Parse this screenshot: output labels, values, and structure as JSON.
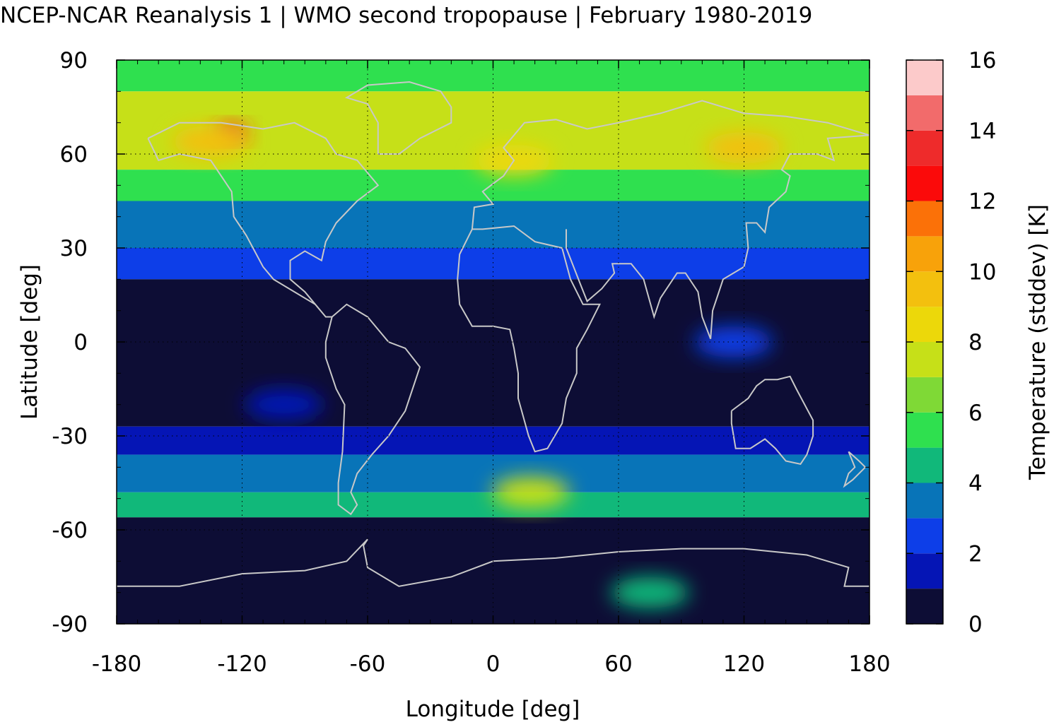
{
  "chart_data": {
    "type": "heatmap",
    "title": "NCEP-NCAR Reanalysis 1 | WMO second tropopause | February 1980-2019",
    "xlabel": "Longitude [deg]",
    "ylabel": "Latitude [deg]",
    "colorbar_label": "Temperature (stddev) [K]",
    "xlim": [
      -180,
      180
    ],
    "ylim": [
      -90,
      90
    ],
    "x_ticks": [
      -180,
      -120,
      -60,
      0,
      60,
      120,
      180
    ],
    "y_ticks": [
      -90,
      -60,
      -30,
      0,
      30,
      60,
      90
    ],
    "colorbar_ticks": [
      0,
      2,
      4,
      6,
      8,
      10,
      12,
      14,
      16
    ],
    "colorbar_range": [
      0,
      16
    ],
    "colorbar_levels": [
      {
        "from": 0,
        "to": 1,
        "color": "#0d0d35"
      },
      {
        "from": 1,
        "to": 2,
        "color": "#0515b5"
      },
      {
        "from": 2,
        "to": 3,
        "color": "#0d3ee8"
      },
      {
        "from": 3,
        "to": 4,
        "color": "#0874b8"
      },
      {
        "from": 4,
        "to": 5,
        "color": "#11b87a"
      },
      {
        "from": 5,
        "to": 6,
        "color": "#2fe04f"
      },
      {
        "from": 6,
        "to": 7,
        "color": "#7fd936"
      },
      {
        "from": 7,
        "to": 8,
        "color": "#c6e018"
      },
      {
        "from": 8,
        "to": 9,
        "color": "#ecd80a"
      },
      {
        "from": 9,
        "to": 10,
        "color": "#f3c00e"
      },
      {
        "from": 10,
        "to": 11,
        "color": "#f8a20a"
      },
      {
        "from": 11,
        "to": 12,
        "color": "#fb7108"
      },
      {
        "from": 12,
        "to": 13,
        "color": "#fb0a0a"
      },
      {
        "from": 13,
        "to": 14,
        "color": "#ee2b2b"
      },
      {
        "from": 14,
        "to": 15,
        "color": "#f26b6b"
      },
      {
        "from": 15,
        "to": 16,
        "color": "#fccaca"
      }
    ],
    "grid": true,
    "coastlines": true,
    "field_bands_deg_lat": [
      {
        "lat_from": 80,
        "lat_to": 90,
        "stddev": 5.5
      },
      {
        "lat_from": 55,
        "lat_to": 80,
        "stddev": 7.5
      },
      {
        "lat_from": 45,
        "lat_to": 55,
        "stddev": 5.5
      },
      {
        "lat_from": 30,
        "lat_to": 45,
        "stddev": 3.5
      },
      {
        "lat_from": 20,
        "lat_to": 30,
        "stddev": 2.5
      },
      {
        "lat_from": -27,
        "lat_to": 20,
        "stddev": 0.5
      },
      {
        "lat_from": -36,
        "lat_to": -27,
        "stddev": 1.5
      },
      {
        "lat_from": -48,
        "lat_to": -36,
        "stddev": 3.5
      },
      {
        "lat_from": -56,
        "lat_to": -48,
        "stddev": 4.5
      },
      {
        "lat_from": -90,
        "lat_to": -56,
        "stddev": 0.5
      }
    ],
    "field_features": [
      {
        "lon": -125,
        "lat": 67,
        "stddev": 13,
        "note": ""
      },
      {
        "lon": -135,
        "lat": 64,
        "stddev": 9
      },
      {
        "lon": 120,
        "lat": 62,
        "stddev": 9.5
      },
      {
        "lon": 10,
        "lat": 58,
        "stddev": 8.5
      },
      {
        "lon": 75,
        "lat": -80,
        "stddev": 4.5
      },
      {
        "lon": 18,
        "lat": -48,
        "stddev": 7
      },
      {
        "lon": 115,
        "lat": 0,
        "stddev": 2.5
      },
      {
        "lon": -100,
        "lat": -20,
        "stddev": 1.5
      }
    ]
  },
  "colors": {
    "coastline": "#c8c8c8",
    "frame": "#000000"
  }
}
